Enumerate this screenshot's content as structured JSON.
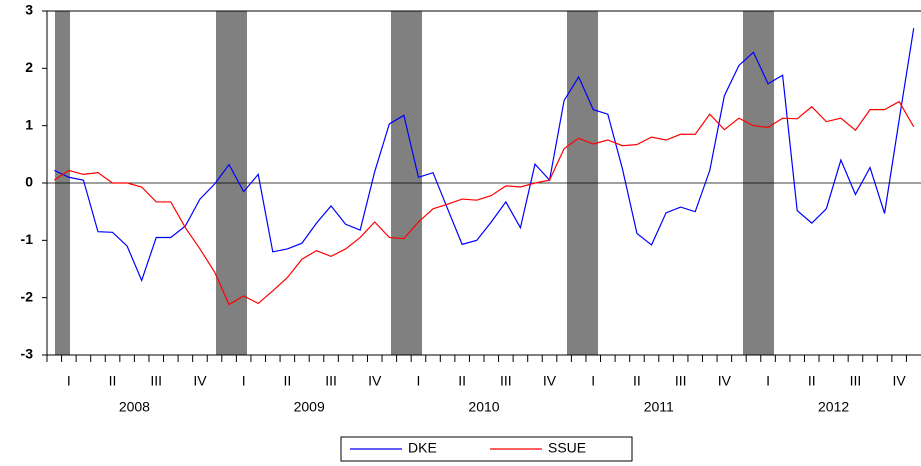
{
  "chart_data": {
    "type": "line",
    "categories": [
      null,
      null,
      null,
      null,
      null,
      null,
      null,
      null,
      null,
      null,
      null,
      null,
      null,
      null,
      null,
      null,
      null,
      null,
      null,
      null,
      null,
      null,
      null,
      null,
      null,
      null,
      null,
      null,
      null,
      null,
      null,
      null,
      null,
      null,
      null,
      null,
      null,
      null,
      null,
      null,
      null,
      null,
      null,
      null,
      null,
      null,
      null,
      null,
      null,
      null,
      null,
      null,
      null,
      null,
      null,
      null,
      null,
      null,
      null,
      null
    ],
    "quarters": [
      "I",
      "II",
      "III",
      "IV",
      "I",
      "II",
      "III",
      "IV",
      "I",
      "II",
      "III",
      "IV",
      "I",
      "II",
      "III",
      "IV",
      "I",
      "II",
      "III",
      "IV"
    ],
    "years": [
      "2008",
      "2009",
      "2010",
      "2011",
      "2012"
    ],
    "series": [
      {
        "name": "DKE",
        "color": "#0000ff",
        "values": [
          0.22,
          0.1,
          0.05,
          -0.85,
          -0.86,
          -1.1,
          -1.7,
          -0.95,
          -0.95,
          -0.75,
          -0.28,
          -0.02,
          0.32,
          -0.15,
          0.15,
          -1.2,
          -1.15,
          -1.05,
          -0.7,
          -0.4,
          -0.72,
          -0.82,
          0.2,
          1.03,
          1.18,
          0.1,
          0.18,
          -0.45,
          -1.07,
          -1.0,
          -0.68,
          -0.33,
          -0.78,
          0.33,
          0.05,
          1.44,
          1.85,
          1.28,
          1.2,
          0.25,
          -0.88,
          -1.08,
          -0.52,
          -0.42,
          -0.5,
          0.22,
          1.52,
          2.05,
          2.28,
          1.73,
          1.88,
          -0.48,
          -0.7,
          -0.45,
          0.4,
          -0.2,
          0.27,
          -0.53,
          1.1,
          2.7
        ]
      },
      {
        "name": "SSUE",
        "color": "#ff0000",
        "values": [
          0.05,
          0.22,
          0.15,
          0.18,
          0.0,
          0.0,
          -0.07,
          -0.33,
          -0.33,
          -0.78,
          -1.15,
          -1.55,
          -2.12,
          -1.97,
          -2.1,
          -1.88,
          -1.65,
          -1.33,
          -1.18,
          -1.28,
          -1.15,
          -0.95,
          -0.68,
          -0.95,
          -0.97,
          -0.68,
          -0.45,
          -0.37,
          -0.28,
          -0.3,
          -0.22,
          -0.05,
          -0.07,
          0.0,
          0.05,
          0.6,
          0.78,
          0.68,
          0.75,
          0.65,
          0.67,
          0.8,
          0.75,
          0.85,
          0.85,
          1.2,
          0.93,
          1.13,
          1.0,
          0.97,
          1.13,
          1.12,
          1.33,
          1.07,
          1.13,
          0.92,
          1.28,
          1.28,
          1.42,
          0.98
        ]
      }
    ],
    "ylim": [
      -3,
      3
    ],
    "yticks": [
      -3,
      -2,
      -1,
      0,
      1,
      2,
      3
    ],
    "zero_line": true
  }
}
